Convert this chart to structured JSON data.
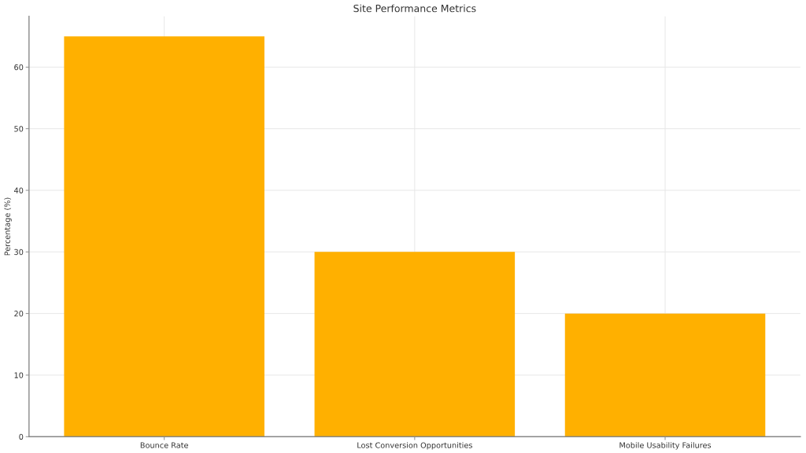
{
  "chart_data": {
    "type": "bar",
    "title": "Site Performance Metrics",
    "ylabel": "Percentage (%)",
    "categories": [
      "Bounce Rate",
      "Lost Conversion Opportunities",
      "Mobile Usability Failures"
    ],
    "values": [
      65,
      30,
      20
    ],
    "color": "#ffb000",
    "ylim": [
      0,
      68.25
    ],
    "yticks": [
      0,
      10,
      20,
      30,
      40,
      50,
      60
    ],
    "grid": true
  }
}
